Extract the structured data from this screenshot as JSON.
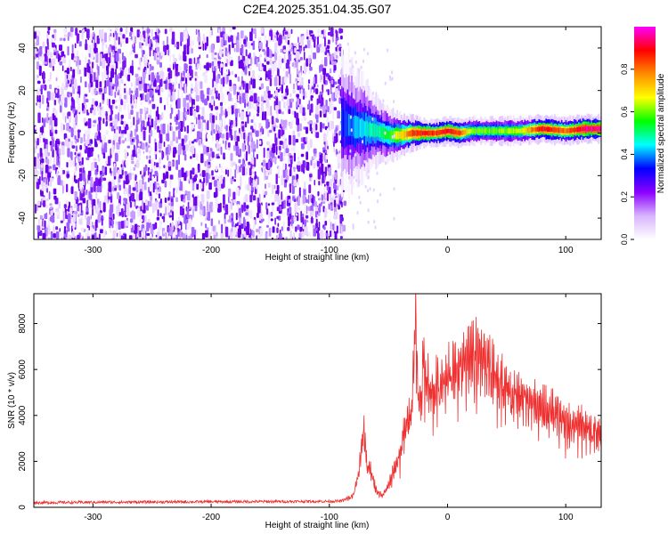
{
  "title": "C2E4.2025.351.04.35.G07",
  "chart_data": [
    {
      "type": "heatmap",
      "title": "C2E4.2025.351.04.35.G07",
      "xlabel": "Height of straight line (km)",
      "ylabel": "Frequency (Hz)",
      "xlim": [
        -350,
        130
      ],
      "ylim": [
        -50,
        50
      ],
      "xticks": [
        -300,
        -200,
        -100,
        0,
        100
      ],
      "yticks": [
        -40,
        -20,
        0,
        20,
        40
      ],
      "colorbar": {
        "label": "Normalized spectral amplitude",
        "range": [
          0,
          1
        ],
        "ticks": [
          0.0,
          0.2,
          0.4,
          0.6,
          0.8
        ],
        "colors": [
          "#ffffff",
          "#d8b4fe",
          "#8b00ff",
          "#0000ff",
          "#00ffff",
          "#00ff00",
          "#ffff00",
          "#ff8c00",
          "#ff0000",
          "#ff00ff"
        ]
      },
      "noise_region_height_range_km": [
        -350,
        -88
      ],
      "signal_track": [
        {
          "x": -90,
          "freq": 5,
          "amp": 0.35,
          "spread": 12
        },
        {
          "x": -80,
          "freq": 3,
          "amp": 0.4,
          "spread": 9
        },
        {
          "x": -70,
          "freq": 2,
          "amp": 0.45,
          "spread": 7
        },
        {
          "x": -60,
          "freq": 1,
          "amp": 0.5,
          "spread": 5
        },
        {
          "x": -50,
          "freq": -1,
          "amp": 0.55,
          "spread": 4
        },
        {
          "x": -40,
          "freq": -1,
          "amp": 0.7,
          "spread": 3
        },
        {
          "x": -30,
          "freq": 0,
          "amp": 0.85,
          "spread": 2.5
        },
        {
          "x": -20,
          "freq": 0,
          "amp": 0.9,
          "spread": 2
        },
        {
          "x": -10,
          "freq": 0,
          "amp": 0.85,
          "spread": 2
        },
        {
          "x": 0,
          "freq": 1,
          "amp": 0.9,
          "spread": 2
        },
        {
          "x": 10,
          "freq": 0,
          "amp": 0.85,
          "spread": 2
        },
        {
          "x": 20,
          "freq": 1,
          "amp": 0.6,
          "spread": 2
        },
        {
          "x": 40,
          "freq": 1,
          "amp": 0.6,
          "spread": 2
        },
        {
          "x": 60,
          "freq": 1,
          "amp": 0.65,
          "spread": 2
        },
        {
          "x": 80,
          "freq": 2,
          "amp": 0.9,
          "spread": 2
        },
        {
          "x": 100,
          "freq": 1,
          "amp": 0.8,
          "spread": 2
        },
        {
          "x": 115,
          "freq": 2,
          "amp": 0.95,
          "spread": 2
        },
        {
          "x": 130,
          "freq": 2,
          "amp": 0.95,
          "spread": 2
        }
      ]
    },
    {
      "type": "line",
      "title": "",
      "xlabel": "Height of straight line (km)",
      "ylabel": "SNR (10 * v/v)",
      "xlim": [
        -350,
        130
      ],
      "ylim": [
        0,
        9300
      ],
      "xticks": [
        -300,
        -200,
        -100,
        0,
        100
      ],
      "yticks": [
        0,
        2000,
        4000,
        6000,
        8000
      ],
      "line_color": "#ee3030",
      "series": [
        {
          "name": "SNR",
          "x": [
            -350,
            -300,
            -250,
            -200,
            -150,
            -100,
            -90,
            -80,
            -75,
            -71,
            -68,
            -65,
            -60,
            -55,
            -50,
            -45,
            -40,
            -35,
            -30,
            -27,
            -25,
            -22,
            -20,
            -15,
            -10,
            -5,
            0,
            5,
            10,
            15,
            20,
            25,
            30,
            40,
            50,
            60,
            70,
            80,
            90,
            100,
            110,
            120,
            130
          ],
          "y": [
            200,
            220,
            230,
            240,
            250,
            260,
            270,
            500,
            1500,
            3600,
            1800,
            1600,
            700,
            500,
            1000,
            1700,
            2400,
            3800,
            4200,
            9200,
            4500,
            5000,
            6500,
            5000,
            5200,
            5500,
            5600,
            6000,
            6300,
            6700,
            6600,
            6900,
            6800,
            5900,
            5300,
            4900,
            4600,
            4400,
            4100,
            3900,
            3700,
            3500,
            3300
          ]
        }
      ],
      "oscillation_start_km": -85,
      "oscillation_amplitude": 0.15
    }
  ]
}
